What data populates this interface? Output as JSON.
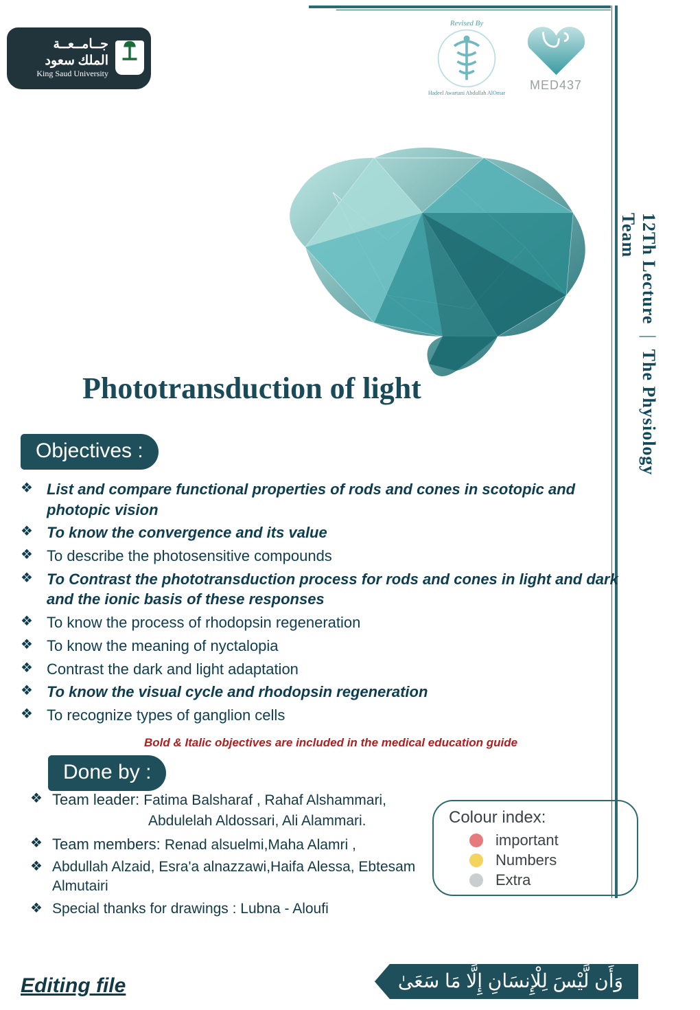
{
  "colors": {
    "primary_dark": "#1f4f5a",
    "primary_teal": "#2a6b73",
    "text_navy": "#123a46",
    "text_deep": "#0d3d4e",
    "title_color": "#1a4a58",
    "note_red": "#b11e1e",
    "med_grey": "#9aa0a3",
    "brain_light": "#a7dbd8",
    "brain_mid": "#58b3b7",
    "brain_dark": "#1f6e74",
    "heart_top": "#bfe1e3",
    "heart_bottom": "#3a9aa0",
    "dot_important": "#e57b7d",
    "dot_numbers": "#f4d35e",
    "dot_extra": "#c9cfd1"
  },
  "header": {
    "ksu_ar_top": "جــامــعــة",
    "ksu_ar_bottom": "الملك سعود",
    "ksu_en": "King Saud University",
    "revised_by": "Revised By",
    "revised_names": "Hadeel Awartani   Abdullah AlOmar",
    "med_label": "MED437"
  },
  "side": {
    "lecture": "12Th  Lecture",
    "team": "The Physiology Team"
  },
  "title": "Phototransduction of light",
  "sections": {
    "objectives_label": "Objectives :",
    "doneby_label": "Done by :"
  },
  "objectives": [
    {
      "text": "List and compare functional properties of rods and cones in scotopic and photopic vision",
      "emph": true
    },
    {
      "text": " To know the convergence and its value",
      "emph": true
    },
    {
      "text": "To describe the photosensitive compounds",
      "emph": false
    },
    {
      "text": "To Contrast the phototransduction process for rods and cones in light and dark  and the ionic basis of these responses",
      "emph": true
    },
    {
      "text": "To know the process of rhodopsin regeneration",
      "emph": false
    },
    {
      "text": "To know the meaning of nyctalopia",
      "emph": false
    },
    {
      "text": "Contrast the dark and light adaptation",
      "emph": false
    },
    {
      "text": "To know the visual cycle and rhodopsin regeneration",
      "emph": true
    },
    {
      "text": "To recognize types of ganglion cells",
      "emph": false
    }
  ],
  "note": "Bold & Italic objectives are included in the medical education guide",
  "doneby": {
    "leader_label": "Team leader: ",
    "leader_names_line1": "Fatima Balsharaf , Rahaf Alshammari,",
    "leader_names_line2": "Abdulelah Aldossari, Ali Alammari.",
    "members_label": "Team members:  ",
    "members_line1": "Renad alsuelmi,Maha Alamri ,",
    "members_line2": "Abdullah Alzaid,  Esra'a alnazzawi,Haifa Alessa, Ebtesam Almutairi",
    "thanks": "Special thanks for drawings : Lubna - Aloufi"
  },
  "editing_link": "Editing file",
  "colour_index": {
    "header": "Colour index:",
    "items": [
      {
        "label": "important",
        "color": "#e57b7d"
      },
      {
        "label": "Numbers",
        "color": "#f4d35e"
      },
      {
        "label": "Extra",
        "color": "#c9cfd1"
      }
    ]
  },
  "ribbon_ar": "وَأَن لَّيْسَ لِلْإِنسَانِ إِلَّا مَا سَعَىٰ"
}
